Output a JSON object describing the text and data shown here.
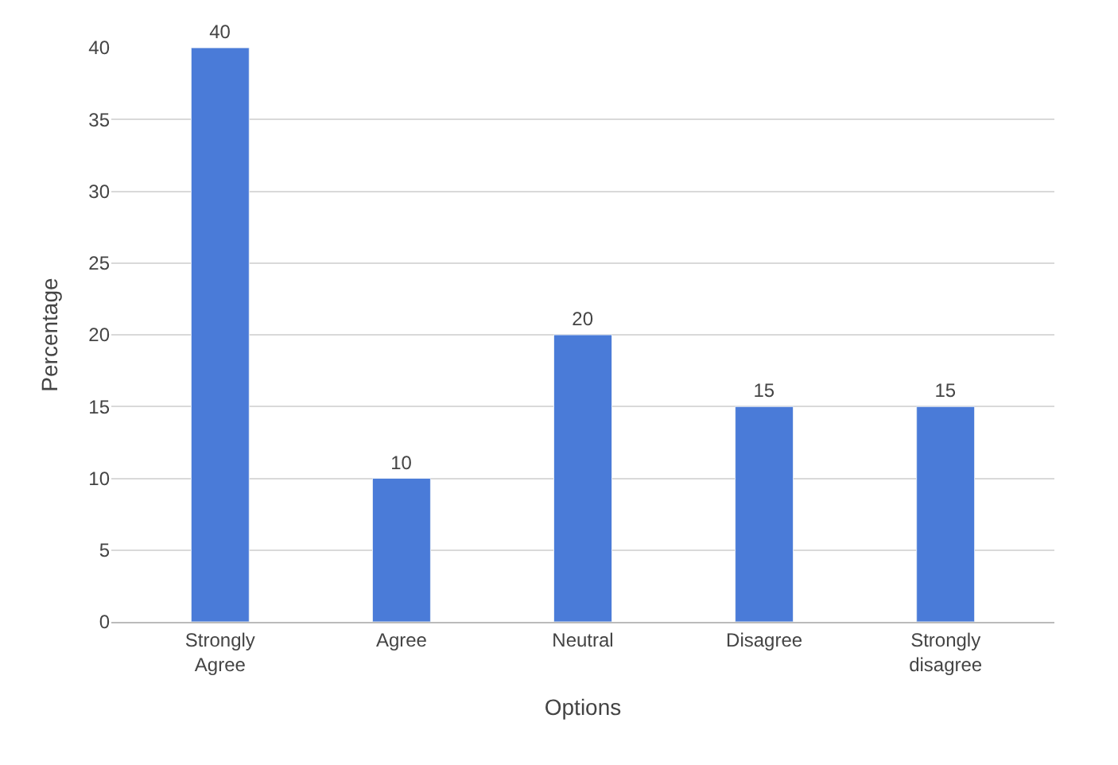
{
  "chart_data": {
    "type": "bar",
    "xlabel": "Options",
    "ylabel": "Percentage",
    "categories": [
      "Strongly Agree",
      "Agree",
      "Neutral",
      "Disagree",
      "Strongly disagree"
    ],
    "values": [
      40,
      10,
      20,
      15,
      15
    ],
    "color": "#4a7bd8",
    "ylim": [
      0,
      40
    ],
    "yticks": [
      0,
      5,
      10,
      15,
      20,
      25,
      30,
      35,
      40
    ],
    "grid": "y",
    "data_labels": true
  }
}
